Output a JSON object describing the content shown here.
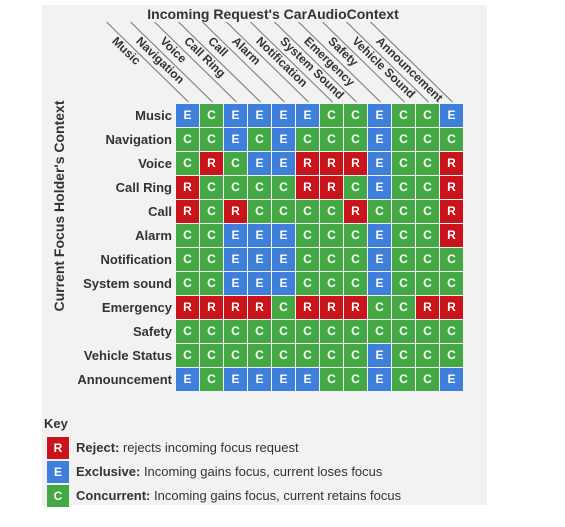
{
  "title": "Incoming Request's CarAudioContext",
  "side_title": "Current Focus Holder's Context",
  "contexts": [
    "Music",
    "Navigation",
    "Voice",
    "Call Ring",
    "Call",
    "Alarm",
    "Notification",
    "System sound",
    "Emergency",
    "Safety",
    "Vehicle Status",
    "Announcement"
  ],
  "column_headers": [
    "Music",
    "Navigation",
    "Voice",
    "Call Ring",
    "Call",
    "Alarm",
    "Notification",
    "System Sound",
    "Emergency",
    "Safety",
    "Vehicle Sound",
    "Announcement"
  ],
  "matrix": [
    [
      "E",
      "C",
      "E",
      "E",
      "E",
      "E",
      "C",
      "C",
      "E",
      "C",
      "C",
      "E"
    ],
    [
      "C",
      "C",
      "E",
      "C",
      "E",
      "C",
      "C",
      "C",
      "E",
      "C",
      "C",
      "C"
    ],
    [
      "C",
      "R",
      "C",
      "E",
      "E",
      "R",
      "R",
      "R",
      "E",
      "C",
      "C",
      "R"
    ],
    [
      "R",
      "C",
      "C",
      "C",
      "C",
      "R",
      "R",
      "C",
      "E",
      "C",
      "C",
      "R"
    ],
    [
      "R",
      "C",
      "R",
      "C",
      "C",
      "C",
      "C",
      "R",
      "C",
      "C",
      "C",
      "R"
    ],
    [
      "C",
      "C",
      "E",
      "E",
      "E",
      "C",
      "C",
      "C",
      "E",
      "C",
      "C",
      "R"
    ],
    [
      "C",
      "C",
      "E",
      "E",
      "E",
      "C",
      "C",
      "C",
      "E",
      "C",
      "C",
      "C"
    ],
    [
      "C",
      "C",
      "E",
      "E",
      "E",
      "C",
      "C",
      "C",
      "E",
      "C",
      "C",
      "C"
    ],
    [
      "R",
      "R",
      "R",
      "R",
      "C",
      "R",
      "R",
      "R",
      "C",
      "C",
      "R",
      "R"
    ],
    [
      "C",
      "C",
      "C",
      "C",
      "C",
      "C",
      "C",
      "C",
      "C",
      "C",
      "C",
      "C"
    ],
    [
      "C",
      "C",
      "C",
      "C",
      "C",
      "C",
      "C",
      "C",
      "E",
      "C",
      "C",
      "C"
    ],
    [
      "E",
      "C",
      "E",
      "E",
      "E",
      "E",
      "C",
      "C",
      "E",
      "C",
      "C",
      "E"
    ]
  ],
  "colors": {
    "R": "#c9141b",
    "E": "#3e7fd9",
    "C": "#44a845"
  },
  "key": {
    "title": "Key",
    "items": [
      {
        "code": "R",
        "term": "Reject:",
        "desc": " rejects incoming focus request"
      },
      {
        "code": "E",
        "term": "Exclusive:",
        "desc": " Incoming gains focus, current loses focus"
      },
      {
        "code": "C",
        "term": "Concurrent:",
        "desc": " Incoming gains focus, current retains focus"
      }
    ]
  }
}
